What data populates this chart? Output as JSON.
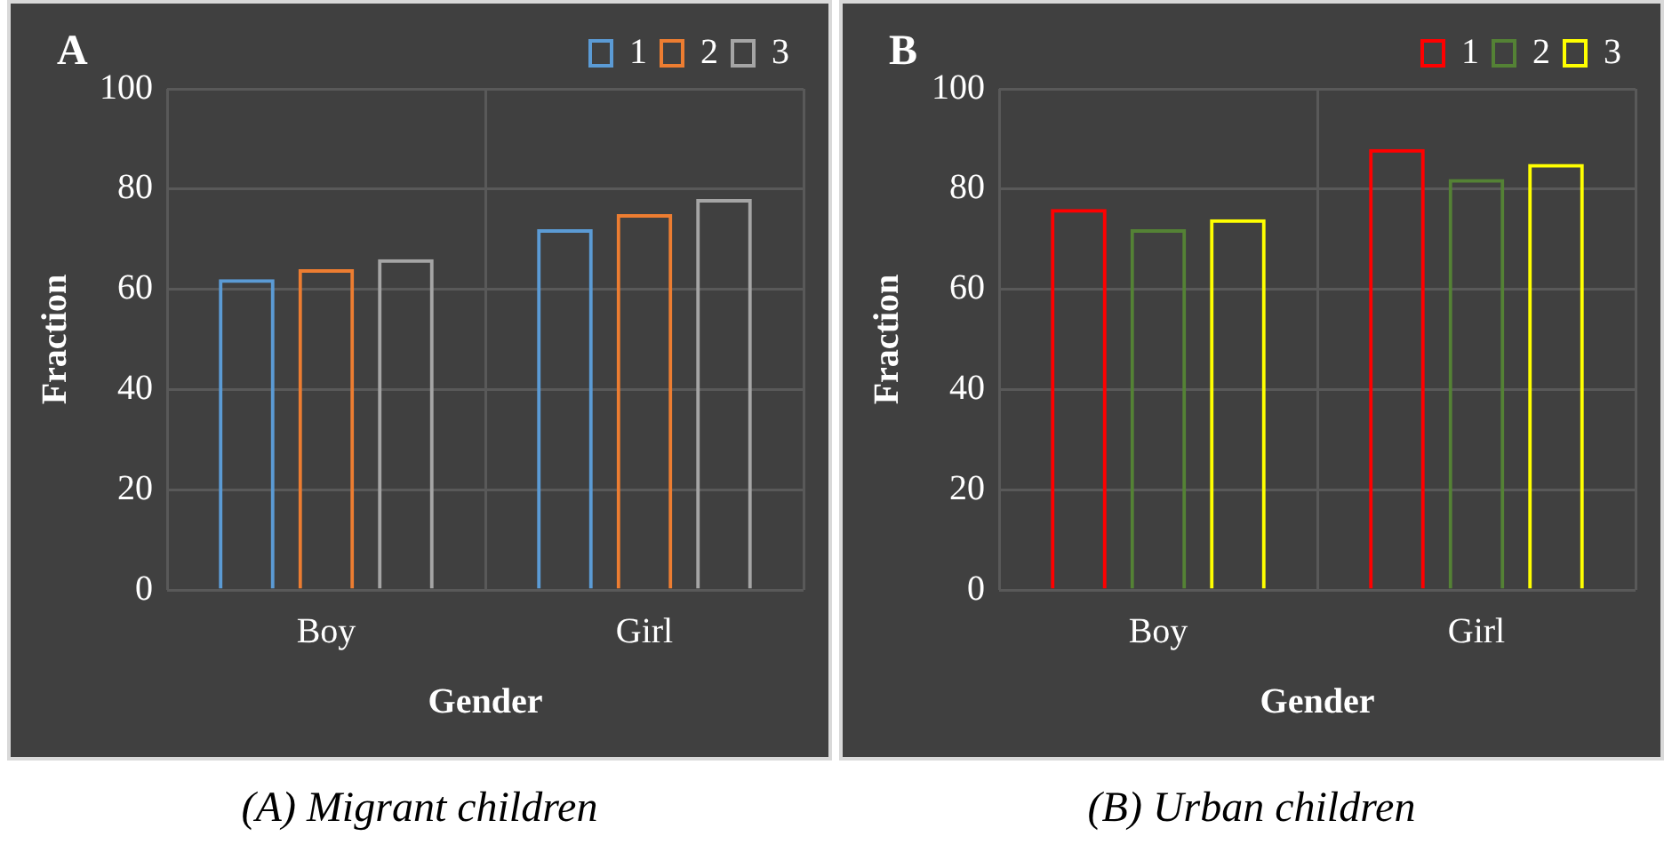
{
  "chart_data": [
    {
      "type": "bar",
      "title": "A",
      "xlabel": "Gender",
      "ylabel": "Fraction",
      "categories": [
        "Boy",
        "Girl"
      ],
      "series": [
        {
          "name": "1",
          "color": "#5b9bd5",
          "values": [
            62,
            72
          ]
        },
        {
          "name": "2",
          "color": "#ed7d31",
          "values": [
            64,
            75
          ]
        },
        {
          "name": "3",
          "color": "#a5a5a5",
          "values": [
            66,
            78
          ]
        }
      ],
      "ylim": [
        0,
        100
      ],
      "yticks": [
        0,
        20,
        40,
        60,
        80,
        100
      ],
      "grid": true,
      "legend": "top right",
      "annotations": [
        "(A) Migrant children"
      ]
    },
    {
      "type": "bar",
      "title": "B",
      "xlabel": "Gender",
      "ylabel": "Fraction",
      "categories": [
        "Boy",
        "Girl"
      ],
      "series": [
        {
          "name": "1",
          "color": "#ff0000",
          "values": [
            76,
            88
          ]
        },
        {
          "name": "2",
          "color": "#548235",
          "values": [
            72,
            82
          ]
        },
        {
          "name": "3",
          "color": "#ffff00",
          "values": [
            74,
            85
          ]
        }
      ],
      "ylim": [
        0,
        100
      ],
      "yticks": [
        0,
        20,
        40,
        60,
        80,
        100
      ],
      "grid": true,
      "legend": "top right",
      "annotations": [
        "(B) Urban children"
      ]
    }
  ]
}
